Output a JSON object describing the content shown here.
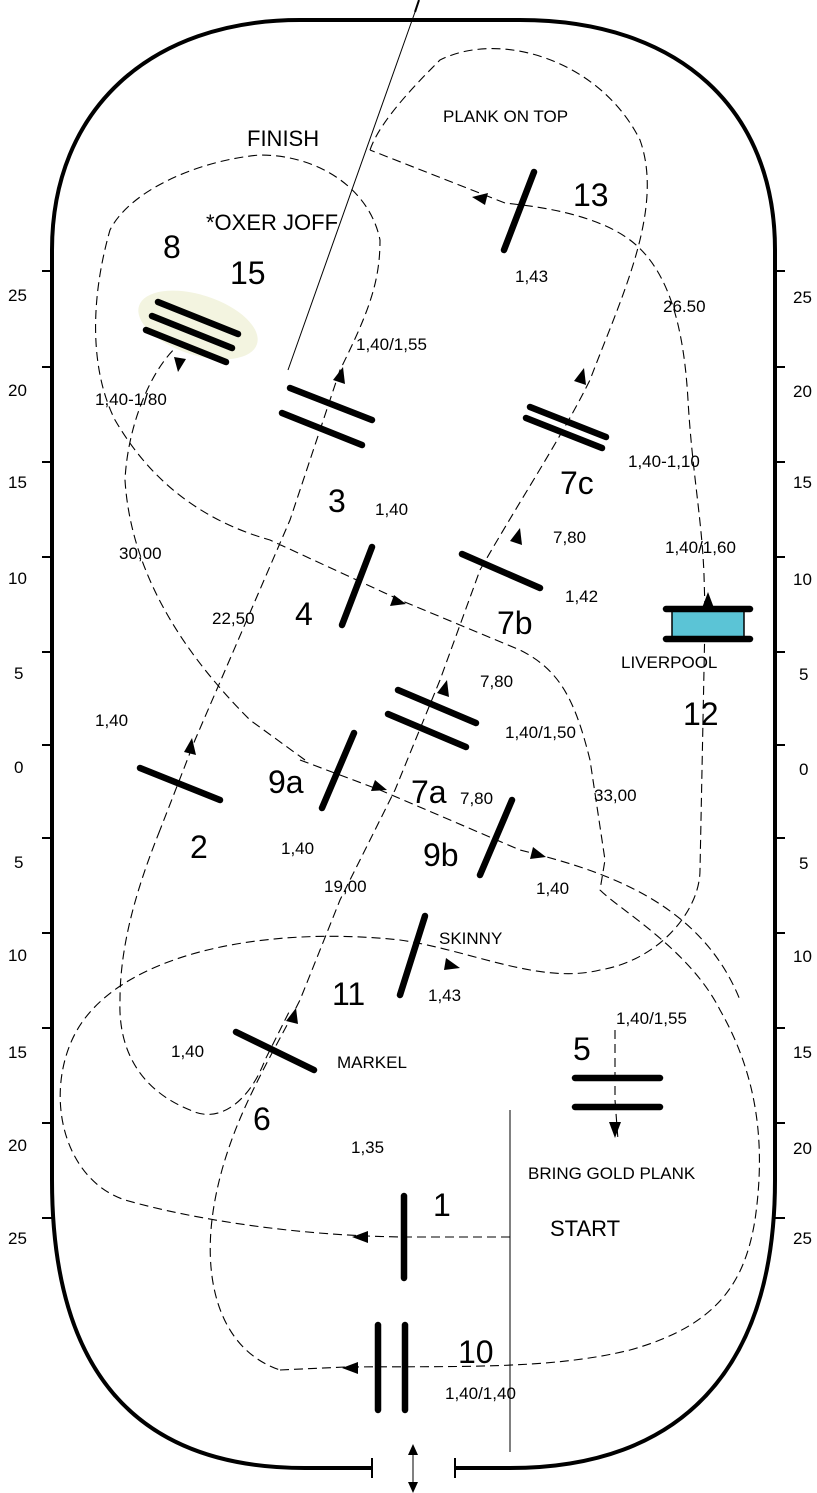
{
  "fence_numbers": {
    "f1": "1",
    "f2": "2",
    "f3": "3",
    "f4": "4",
    "f5": "5",
    "f6": "6",
    "f7a": "7a",
    "f7b": "7b",
    "f7c": "7c",
    "f8": "8",
    "f9a": "9a",
    "f9b": "9b",
    "f10": "10",
    "f11": "11",
    "f12": "12",
    "f13": "13",
    "f15": "15"
  },
  "labels": {
    "finish": "FINISH",
    "start": "START",
    "plank_on_top": "PLANK ON TOP",
    "oxer_joff": "*OXER JOFF",
    "liverpool": "LIVERPOOL",
    "skinny": "SKINNY",
    "markel": "MARKEL",
    "bring_gold_plank": "BRING GOLD PLANK"
  },
  "heights": {
    "h13": "1,43",
    "h3": "1,40/1,55",
    "h8": "1,40-1/80",
    "h7c": "1,40-1,10",
    "h4": "1,40",
    "h12": "1,40/1,60",
    "h7b": "1,42",
    "h2": "1,40",
    "h7a": "1,40/1,50",
    "h9a": "1,40",
    "h9b": "1,40",
    "h11": "1,43",
    "h5": "1,40/1,55",
    "h6": "1,40",
    "h1": "1,35",
    "h10": "1,40/1,40"
  },
  "distances": {
    "d_13_12": "26.50",
    "d_8_4": "30,00",
    "d_7b_7c": "7,80",
    "d_2_3": "22,50",
    "d_7a_7b": "7,80",
    "d_9a_9b": "7,80",
    "d_5": "33,00",
    "d_6_7a": "19,00"
  },
  "scale": {
    "left": [
      "25",
      "20",
      "15",
      "10",
      "5",
      "0",
      "5",
      "10",
      "15",
      "20",
      "25"
    ],
    "right": [
      "25",
      "20",
      "15",
      "10",
      "5",
      "0",
      "5",
      "10",
      "15",
      "20",
      "25"
    ]
  },
  "colors": {
    "liverpool_water": "#5bc4d6",
    "wall": "#000000"
  }
}
